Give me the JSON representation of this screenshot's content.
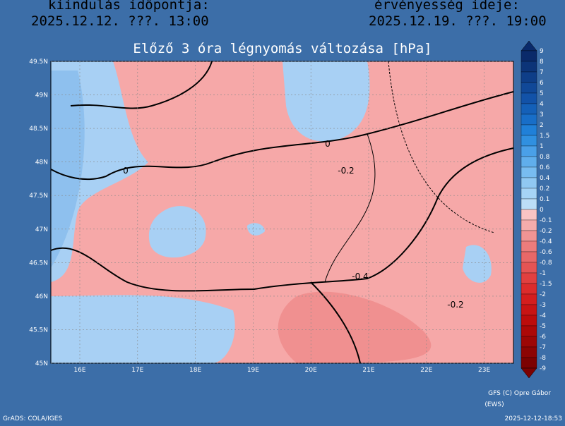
{
  "header": {
    "left_label": "kiindulás időpontja:",
    "left_time": "2025.12.12. ???. 13:00",
    "right_label": "érvényesség ideje:",
    "right_time": "2025.12.19. ???. 19:00"
  },
  "title": "Előző 3 óra légnyomás változása [hPa]",
  "map": {
    "y_labels": [
      "49.5N",
      "49N",
      "48.5N",
      "48N",
      "47.5N",
      "47N",
      "46.5N",
      "46N",
      "45.5N",
      "45N"
    ],
    "x_labels": [
      "16E",
      "17E",
      "18E",
      "19E",
      "20E",
      "21E",
      "22E",
      "23E"
    ],
    "contour_labels": [
      "0",
      "0",
      "-0.2",
      "-0.4",
      "-0.2"
    ]
  },
  "colorbar": {
    "labels": [
      "9",
      "8",
      "7",
      "6",
      "5",
      "4",
      "3",
      "2",
      "1.5",
      "1",
      "0.8",
      "0.6",
      "0.4",
      "0.2",
      "0.1",
      "0",
      "-0.1",
      "-0.2",
      "-0.4",
      "-0.6",
      "-0.8",
      "-1",
      "-1.5",
      "-2",
      "-3",
      "-4",
      "-5",
      "-6",
      "-7",
      "-8",
      "-9"
    ],
    "colors": [
      "#0a2a6a",
      "#0c3478",
      "#0e3e88",
      "#104898",
      "#1252a8",
      "#1460b8",
      "#186ec8",
      "#2080d8",
      "#3090e0",
      "#4aa0e8",
      "#60aeec",
      "#78bcf0",
      "#90c8f2",
      "#a6d4f6",
      "#bcdef8",
      "#f8c4c4",
      "#f4acac",
      "#f09494",
      "#ec7c7c",
      "#e86868",
      "#e45454",
      "#e04040",
      "#dc2c2c",
      "#d41e1e",
      "#c81414",
      "#bc0c0c",
      "#ac0808",
      "#9c0606",
      "#8c0404",
      "#7c0202"
    ]
  },
  "footer": {
    "credit": "GFS (C) Opre Gábor",
    "credit2": "(EWS)",
    "software": "GrADS: COLA/IGES",
    "timestamp": "2025-12-12-18:53"
  }
}
